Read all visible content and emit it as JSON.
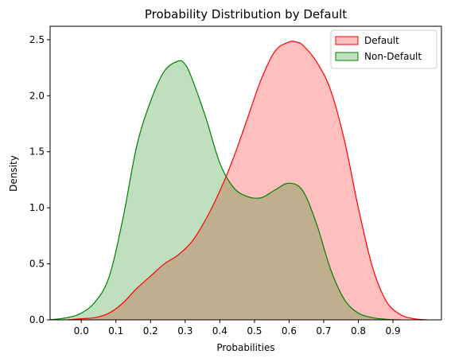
{
  "chart_data": {
    "type": "area",
    "title": "Probability Distribution by Default",
    "xlabel": "Probabilities",
    "ylabel": "Density",
    "xlim": [
      -0.09,
      1.04
    ],
    "ylim": [
      0.0,
      2.62
    ],
    "x_ticks": [
      0.0,
      0.1,
      0.2,
      0.3,
      0.4,
      0.5,
      0.6,
      0.7,
      0.8,
      0.9
    ],
    "x_tick_labels": [
      "0.0",
      "0.1",
      "0.2",
      "0.3",
      "0.4",
      "0.5",
      "0.6",
      "0.7",
      "0.8",
      "0.9"
    ],
    "y_ticks": [
      0.0,
      0.5,
      1.0,
      1.5,
      2.0,
      2.5
    ],
    "y_tick_labels": [
      "0.0",
      "0.5",
      "1.0",
      "1.5",
      "2.0",
      "2.5"
    ],
    "grid": false,
    "legend_position": "upper-right",
    "series": [
      {
        "name": "Default",
        "line_color": "#ff0000",
        "fill_color": "#ff0000",
        "fill_opacity": 0.25,
        "x": [
          -0.04,
          0.0,
          0.04,
          0.08,
          0.12,
          0.16,
          0.2,
          0.24,
          0.28,
          0.32,
          0.36,
          0.4,
          0.44,
          0.48,
          0.52,
          0.56,
          0.6,
          0.62,
          0.64,
          0.68,
          0.72,
          0.76,
          0.8,
          0.84,
          0.88,
          0.92,
          0.96,
          1.0
        ],
        "y": [
          0.0,
          0.01,
          0.02,
          0.06,
          0.15,
          0.28,
          0.39,
          0.5,
          0.58,
          0.7,
          0.9,
          1.15,
          1.45,
          1.8,
          2.15,
          2.4,
          2.48,
          2.48,
          2.45,
          2.3,
          2.05,
          1.6,
          1.0,
          0.48,
          0.17,
          0.05,
          0.01,
          0.0
        ]
      },
      {
        "name": "Non-Default",
        "line_color": "#008000",
        "fill_color": "#008000",
        "fill_opacity": 0.25,
        "x": [
          -0.09,
          -0.04,
          0.0,
          0.04,
          0.08,
          0.12,
          0.16,
          0.2,
          0.24,
          0.28,
          0.3,
          0.32,
          0.36,
          0.4,
          0.44,
          0.48,
          0.52,
          0.56,
          0.6,
          0.64,
          0.68,
          0.72,
          0.76,
          0.8,
          0.84,
          0.88,
          0.92
        ],
        "y": [
          0.0,
          0.02,
          0.06,
          0.16,
          0.38,
          0.9,
          1.55,
          1.95,
          2.22,
          2.31,
          2.28,
          2.15,
          1.8,
          1.4,
          1.18,
          1.1,
          1.09,
          1.16,
          1.22,
          1.15,
          0.85,
          0.45,
          0.18,
          0.06,
          0.02,
          0.005,
          0.0
        ]
      }
    ]
  }
}
